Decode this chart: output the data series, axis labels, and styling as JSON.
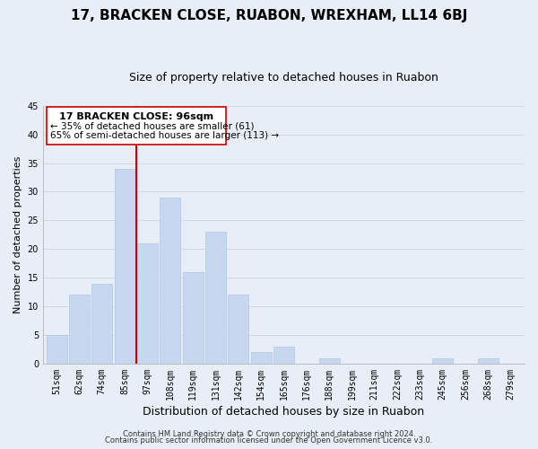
{
  "title": "17, BRACKEN CLOSE, RUABON, WREXHAM, LL14 6BJ",
  "subtitle": "Size of property relative to detached houses in Ruabon",
  "xlabel": "Distribution of detached houses by size in Ruabon",
  "ylabel": "Number of detached properties",
  "bin_labels": [
    "51sqm",
    "62sqm",
    "74sqm",
    "85sqm",
    "97sqm",
    "108sqm",
    "119sqm",
    "131sqm",
    "142sqm",
    "154sqm",
    "165sqm",
    "176sqm",
    "188sqm",
    "199sqm",
    "211sqm",
    "222sqm",
    "233sqm",
    "245sqm",
    "256sqm",
    "268sqm",
    "279sqm"
  ],
  "bar_heights": [
    5,
    12,
    14,
    34,
    21,
    29,
    16,
    23,
    12,
    2,
    3,
    0,
    1,
    0,
    0,
    0,
    0,
    1,
    0,
    1,
    0
  ],
  "bar_color": "#c5d8f0",
  "bar_edge_color": "#b0c8e8",
  "vline_color": "#cc0000",
  "annotation_title": "17 BRACKEN CLOSE: 96sqm",
  "annotation_line1": "← 35% of detached houses are smaller (61)",
  "annotation_line2": "65% of semi-detached houses are larger (113) →",
  "box_facecolor": "#ffffff",
  "box_edgecolor": "#cc0000",
  "grid_color": "#d0d8e8",
  "background_color": "#e8eef8",
  "footer1": "Contains HM Land Registry data © Crown copyright and database right 2024.",
  "footer2": "Contains public sector information licensed under the Open Government Licence v3.0.",
  "ylim": [
    0,
    45
  ],
  "yticks": [
    0,
    5,
    10,
    15,
    20,
    25,
    30,
    35,
    40,
    45
  ],
  "title_fontsize": 11,
  "subtitle_fontsize": 9,
  "xlabel_fontsize": 9,
  "ylabel_fontsize": 8,
  "tick_fontsize": 7,
  "footer_fontsize": 6
}
